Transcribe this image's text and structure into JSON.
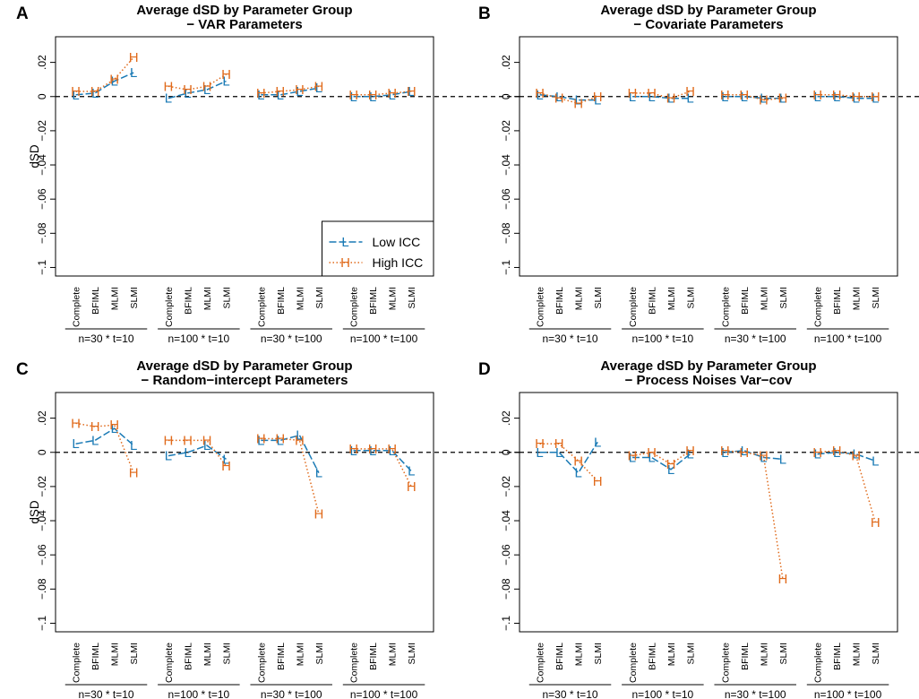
{
  "chart_data": [
    {
      "type": "line",
      "panel_label": "A",
      "title": "Average dSD by Parameter Group",
      "subtitle": "− VAR Parameters",
      "ylabel": "dSD",
      "ylim": [
        -0.105,
        0.035
      ],
      "yticks": [
        0.02,
        0,
        -0.02,
        -0.04,
        -0.06,
        -0.08,
        -0.1
      ],
      "ytick_labels": [
        ".02",
        "0",
        "−.02",
        "−.04",
        "−.06",
        "−.08",
        "−.1"
      ],
      "categories": [
        "Complete",
        "BFIML",
        "MLMI",
        "SLMI"
      ],
      "groups": [
        "n=30 * t=10",
        "n=100 * t=10",
        "n=30 * t=100",
        "n=100 * t=100"
      ],
      "reference_line": 0,
      "series": [
        {
          "name": "Low ICC",
          "marker": "L",
          "color": "#1a7ab5",
          "values": [
            [
              0.001,
              0.002,
              0.009,
              0.014
            ],
            [
              -0.001,
              0.002,
              0.004,
              0.009
            ],
            [
              0.001,
              0.001,
              0.003,
              0.005
            ],
            [
              0.0,
              0.0,
              0.001,
              0.003
            ]
          ]
        },
        {
          "name": "High ICC",
          "marker": "H",
          "color": "#e06a1b",
          "values": [
            [
              0.003,
              0.003,
              0.01,
              0.023
            ],
            [
              0.006,
              0.004,
              0.006,
              0.013
            ],
            [
              0.002,
              0.003,
              0.004,
              0.006
            ],
            [
              0.001,
              0.001,
              0.002,
              0.003
            ]
          ]
        }
      ],
      "legend": {
        "position": "bottom-right",
        "entries": [
          "Low ICC",
          "High ICC"
        ]
      }
    },
    {
      "type": "line",
      "panel_label": "B",
      "title": "Average dSD by Parameter Group",
      "subtitle": "− Covariate Parameters",
      "ylabel": "",
      "ylim": [
        -0.105,
        0.035
      ],
      "yticks": [
        0.02,
        0,
        -0.02,
        -0.04,
        -0.06,
        -0.08,
        -0.1
      ],
      "ytick_labels": [
        ".02",
        "0",
        "−.02",
        "−.04",
        "−.06",
        "−.08",
        "−.1"
      ],
      "categories": [
        "Complete",
        "BFIML",
        "MLMI",
        "SLMI"
      ],
      "groups": [
        "n=30 * t=10",
        "n=100 * t=10",
        "n=30 * t=100",
        "n=100 * t=100"
      ],
      "reference_line": 0,
      "series": [
        {
          "name": "Low ICC",
          "marker": "L",
          "color": "#1a7ab5",
          "values": [
            [
              0.001,
              0.0,
              -0.002,
              -0.002
            ],
            [
              0.0,
              0.0,
              -0.001,
              -0.001
            ],
            [
              0.0,
              0.0,
              -0.001,
              -0.001
            ],
            [
              0.0,
              0.0,
              -0.001,
              -0.001
            ]
          ]
        },
        {
          "name": "High ICC",
          "marker": "H",
          "color": "#e06a1b",
          "values": [
            [
              0.002,
              -0.001,
              -0.004,
              0.0
            ],
            [
              0.002,
              0.002,
              -0.001,
              0.003
            ],
            [
              0.001,
              0.001,
              -0.002,
              -0.001
            ],
            [
              0.001,
              0.001,
              0.0,
              0.0
            ]
          ]
        }
      ]
    },
    {
      "type": "line",
      "panel_label": "C",
      "title": "Average dSD by Parameter Group",
      "subtitle": "− Random−intercept Parameters",
      "ylabel": "dSD",
      "ylim": [
        -0.105,
        0.035
      ],
      "yticks": [
        0.02,
        0,
        -0.02,
        -0.04,
        -0.06,
        -0.08,
        -0.1
      ],
      "ytick_labels": [
        ".02",
        "0",
        "−.02",
        "−.04",
        "−.06",
        "−.08",
        "−.1"
      ],
      "categories": [
        "Complete",
        "BFIML",
        "MLMI",
        "SLMI"
      ],
      "groups": [
        "n=30 * t=10",
        "n=100 * t=10",
        "n=30 * t=100",
        "n=100 * t=100"
      ],
      "reference_line": 0,
      "series": [
        {
          "name": "Low ICC",
          "marker": "L",
          "color": "#1a7ab5",
          "values": [
            [
              0.005,
              0.007,
              0.014,
              0.004
            ],
            [
              -0.002,
              0.0,
              0.004,
              -0.004
            ],
            [
              0.007,
              0.007,
              0.01,
              -0.012
            ],
            [
              0.001,
              0.001,
              0.001,
              -0.011
            ]
          ]
        },
        {
          "name": "High ICC",
          "marker": "H",
          "color": "#e06a1b",
          "values": [
            [
              0.017,
              0.015,
              0.016,
              -0.012
            ],
            [
              0.007,
              0.007,
              0.007,
              -0.008
            ],
            [
              0.008,
              0.008,
              0.007,
              -0.036
            ],
            [
              0.002,
              0.002,
              0.002,
              -0.02
            ]
          ]
        }
      ]
    },
    {
      "type": "line",
      "panel_label": "D",
      "title": "Average dSD by Parameter Group",
      "subtitle": "− Process Noises Var−cov",
      "ylabel": "",
      "ylim": [
        -0.105,
        0.035
      ],
      "yticks": [
        0.02,
        0,
        -0.02,
        -0.04,
        -0.06,
        -0.08,
        -0.1
      ],
      "ytick_labels": [
        ".02",
        "0",
        "−.02",
        "−.04",
        "−.06",
        "−.08",
        "−.1"
      ],
      "categories": [
        "Complete",
        "BFIML",
        "MLMI",
        "SLMI"
      ],
      "groups": [
        "n=30 * t=10",
        "n=100 * t=10",
        "n=30 * t=100",
        "n=100 * t=100"
      ],
      "reference_line": 0,
      "series": [
        {
          "name": "Low ICC",
          "marker": "L",
          "color": "#1a7ab5",
          "values": [
            [
              0.0,
              0.0,
              -0.012,
              0.006
            ],
            [
              -0.003,
              -0.003,
              -0.01,
              -0.001
            ],
            [
              0.0,
              0.001,
              -0.003,
              -0.004
            ],
            [
              -0.001,
              0.0,
              -0.001,
              -0.005
            ]
          ]
        },
        {
          "name": "High ICC",
          "marker": "H",
          "color": "#e06a1b",
          "values": [
            [
              0.005,
              0.005,
              -0.005,
              -0.017
            ],
            [
              -0.002,
              0.0,
              -0.007,
              0.001
            ],
            [
              0.001,
              0.0,
              -0.002,
              -0.074
            ],
            [
              0.0,
              0.001,
              -0.002,
              -0.041
            ]
          ]
        }
      ]
    }
  ]
}
